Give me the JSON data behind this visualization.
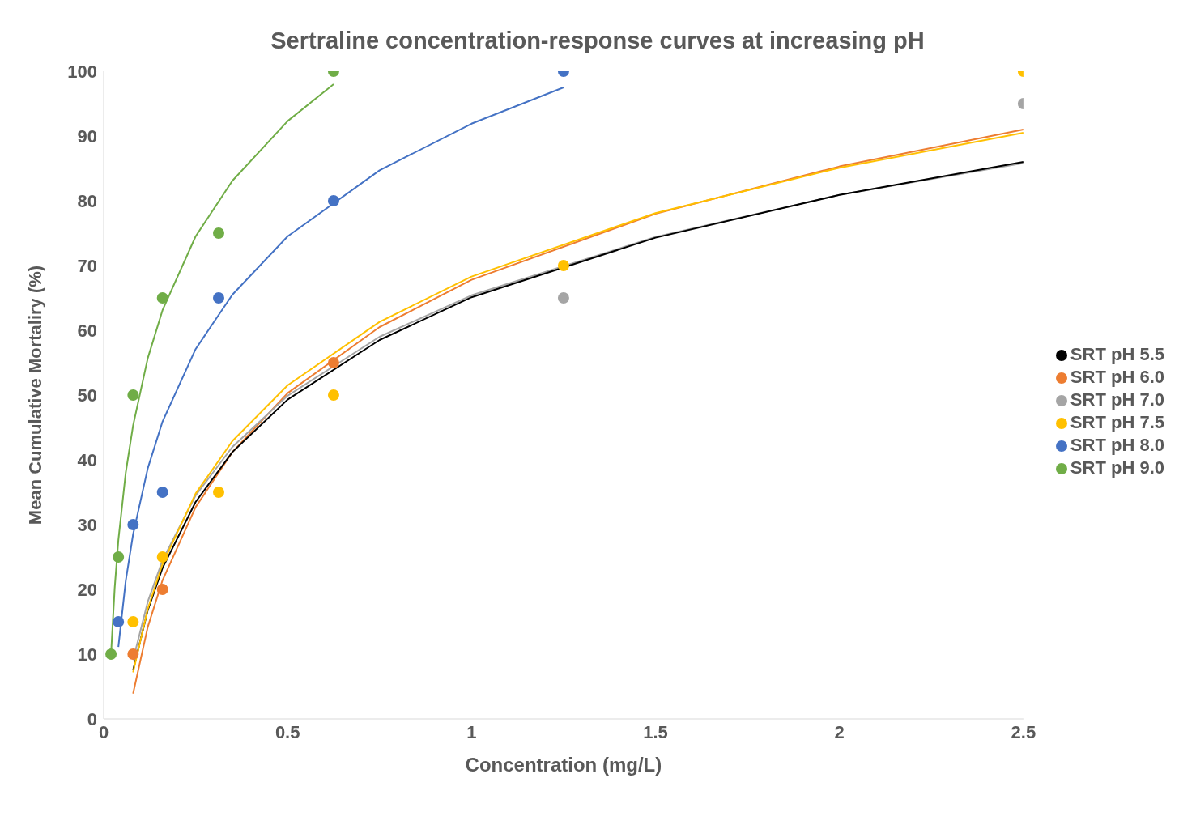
{
  "chart_data": {
    "type": "scatter",
    "title": "Sertraline concentration-response curves at increasing pH",
    "xlabel": "Concentration (mg/L)",
    "ylabel": "Mean Cumulative Mortaliry (%)",
    "x": [
      0.02,
      0.04,
      0.08,
      0.16,
      0.3125,
      0.625,
      1.25,
      2.5
    ],
    "xlim": [
      0,
      2.5
    ],
    "xticks": [
      0,
      0.5,
      1,
      1.5,
      2,
      2.5
    ],
    "ylim": [
      0,
      100
    ],
    "yticks": [
      0,
      10,
      20,
      30,
      40,
      50,
      60,
      70,
      80,
      90,
      100
    ],
    "grid": false,
    "legend": "right",
    "marker": "circle",
    "series": [
      {
        "name": "SRT pH 5.5",
        "color": "#000000",
        "values": [
          null,
          null,
          null,
          null,
          null,
          null,
          null,
          null
        ]
      },
      {
        "name": "SRT pH 6.0",
        "color": "#ed7d31",
        "values": [
          null,
          null,
          10,
          20,
          null,
          55,
          null,
          null
        ]
      },
      {
        "name": "SRT pH 7.0",
        "color": "#a5a5a5",
        "values": [
          null,
          null,
          null,
          null,
          null,
          null,
          65,
          95
        ]
      },
      {
        "name": "SRT pH 7.5",
        "color": "#ffc000",
        "values": [
          null,
          null,
          15,
          25,
          35,
          50,
          70,
          100
        ]
      },
      {
        "name": "SRT pH 8.0",
        "color": "#4472c4",
        "values": [
          null,
          15,
          30,
          35,
          65,
          80,
          100,
          null
        ]
      },
      {
        "name": "SRT pH 9.0",
        "color": "#70ad47",
        "values": [
          10,
          25,
          50,
          65,
          75,
          100,
          null,
          null
        ]
      },
      {
        "type": "line",
        "marker": "none",
        "color": "#ed7d31",
        "x": [
          0.08,
          0.12,
          0.16,
          0.25,
          0.35,
          0.5,
          0.75,
          1,
          1.5,
          2,
          2.5
        ],
        "values": [
          3.9,
          14.2,
          21.4,
          32.7,
          41.2,
          50.3,
          60.5,
          67.8,
          78.0,
          85.3,
          91.0
        ]
      },
      {
        "type": "line",
        "marker": "none",
        "color": "#a5a5a5",
        "x": [
          0.08,
          0.12,
          0.16,
          0.25,
          0.35,
          0.5,
          0.75,
          1,
          1.5,
          2,
          2.5
        ],
        "values": [
          9.1,
          18.1,
          24.5,
          34.5,
          42.0,
          49.9,
          59.0,
          65.4,
          74.4,
          80.9,
          85.8
        ]
      },
      {
        "type": "line",
        "marker": "none",
        "color": "#000000",
        "x": [
          0.08,
          0.12,
          0.16,
          0.25,
          0.35,
          0.5,
          0.75,
          1,
          1.5,
          2,
          2.5
        ],
        "values": [
          7.5,
          16.8,
          23.3,
          33.5,
          41.2,
          49.3,
          58.5,
          65.1,
          74.3,
          80.9,
          86.0
        ]
      },
      {
        "type": "line",
        "marker": "none",
        "color": "#ffc000",
        "x": [
          0.08,
          0.12,
          0.16,
          0.25,
          0.35,
          0.5,
          0.75,
          1,
          1.5,
          2,
          2.5
        ],
        "values": [
          7.2,
          17.0,
          23.9,
          34.8,
          42.9,
          51.5,
          61.3,
          68.3,
          78.1,
          85.1,
          90.5
        ]
      },
      {
        "type": "line",
        "marker": "none",
        "color": "#4472c4",
        "x": [
          0.04,
          0.06,
          0.08,
          0.12,
          0.16,
          0.25,
          0.35,
          0.5,
          0.75,
          1,
          1.25
        ],
        "values": [
          11.1,
          21.3,
          28.5,
          38.7,
          45.9,
          57.1,
          65.5,
          74.5,
          84.7,
          91.9,
          97.5
        ]
      },
      {
        "type": "line",
        "marker": "none",
        "color": "#70ad47",
        "x": [
          0.02,
          0.03,
          0.04,
          0.06,
          0.08,
          0.12,
          0.16,
          0.25,
          0.35,
          0.5,
          0.625
        ],
        "values": [
          9.9,
          20.2,
          27.6,
          38.0,
          45.3,
          55.7,
          63.1,
          74.5,
          83.1,
          92.3,
          98.0
        ]
      }
    ]
  }
}
